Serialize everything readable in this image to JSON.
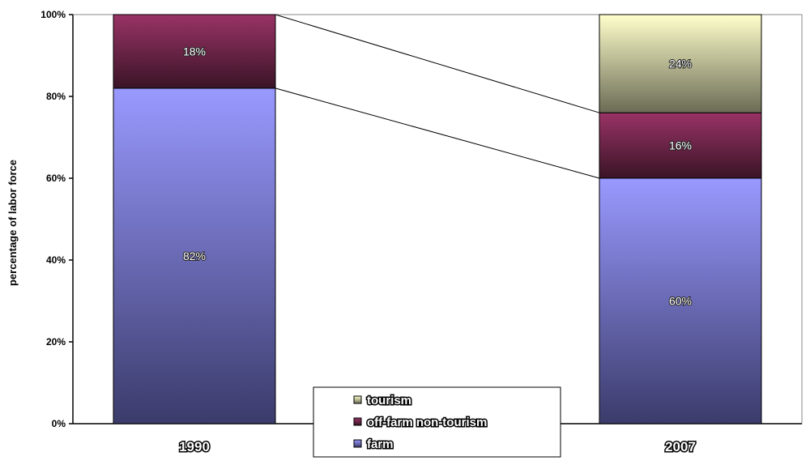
{
  "chart_data": {
    "type": "bar",
    "stacked": true,
    "percent": true,
    "categories": [
      "1990",
      "2007"
    ],
    "series": [
      {
        "name": "farm",
        "values": [
          82,
          60
        ],
        "labels": [
          "82%",
          "60%"
        ],
        "color_top": "#9999ff",
        "color_bottom": "#3b3b6b"
      },
      {
        "name": "off-farm non-tourism",
        "values": [
          18,
          16
        ],
        "labels": [
          "18%",
          "16%"
        ],
        "color_top": "#993366",
        "color_bottom": "#3a1426"
      },
      {
        "name": "tourism",
        "values": [
          0,
          24
        ],
        "labels": [
          "",
          "24%"
        ],
        "color_top": "#ffffcc",
        "color_bottom": "#6b6b55"
      }
    ],
    "ylabel": "percentage of labor force",
    "yticks": [
      "0%",
      "20%",
      "40%",
      "60%",
      "80%",
      "100%"
    ],
    "ylim": [
      0,
      100
    ],
    "series_lines": true,
    "legend_position": "bottom-center",
    "legend_order": [
      "tourism",
      "off-farm non-tourism",
      "farm"
    ]
  }
}
